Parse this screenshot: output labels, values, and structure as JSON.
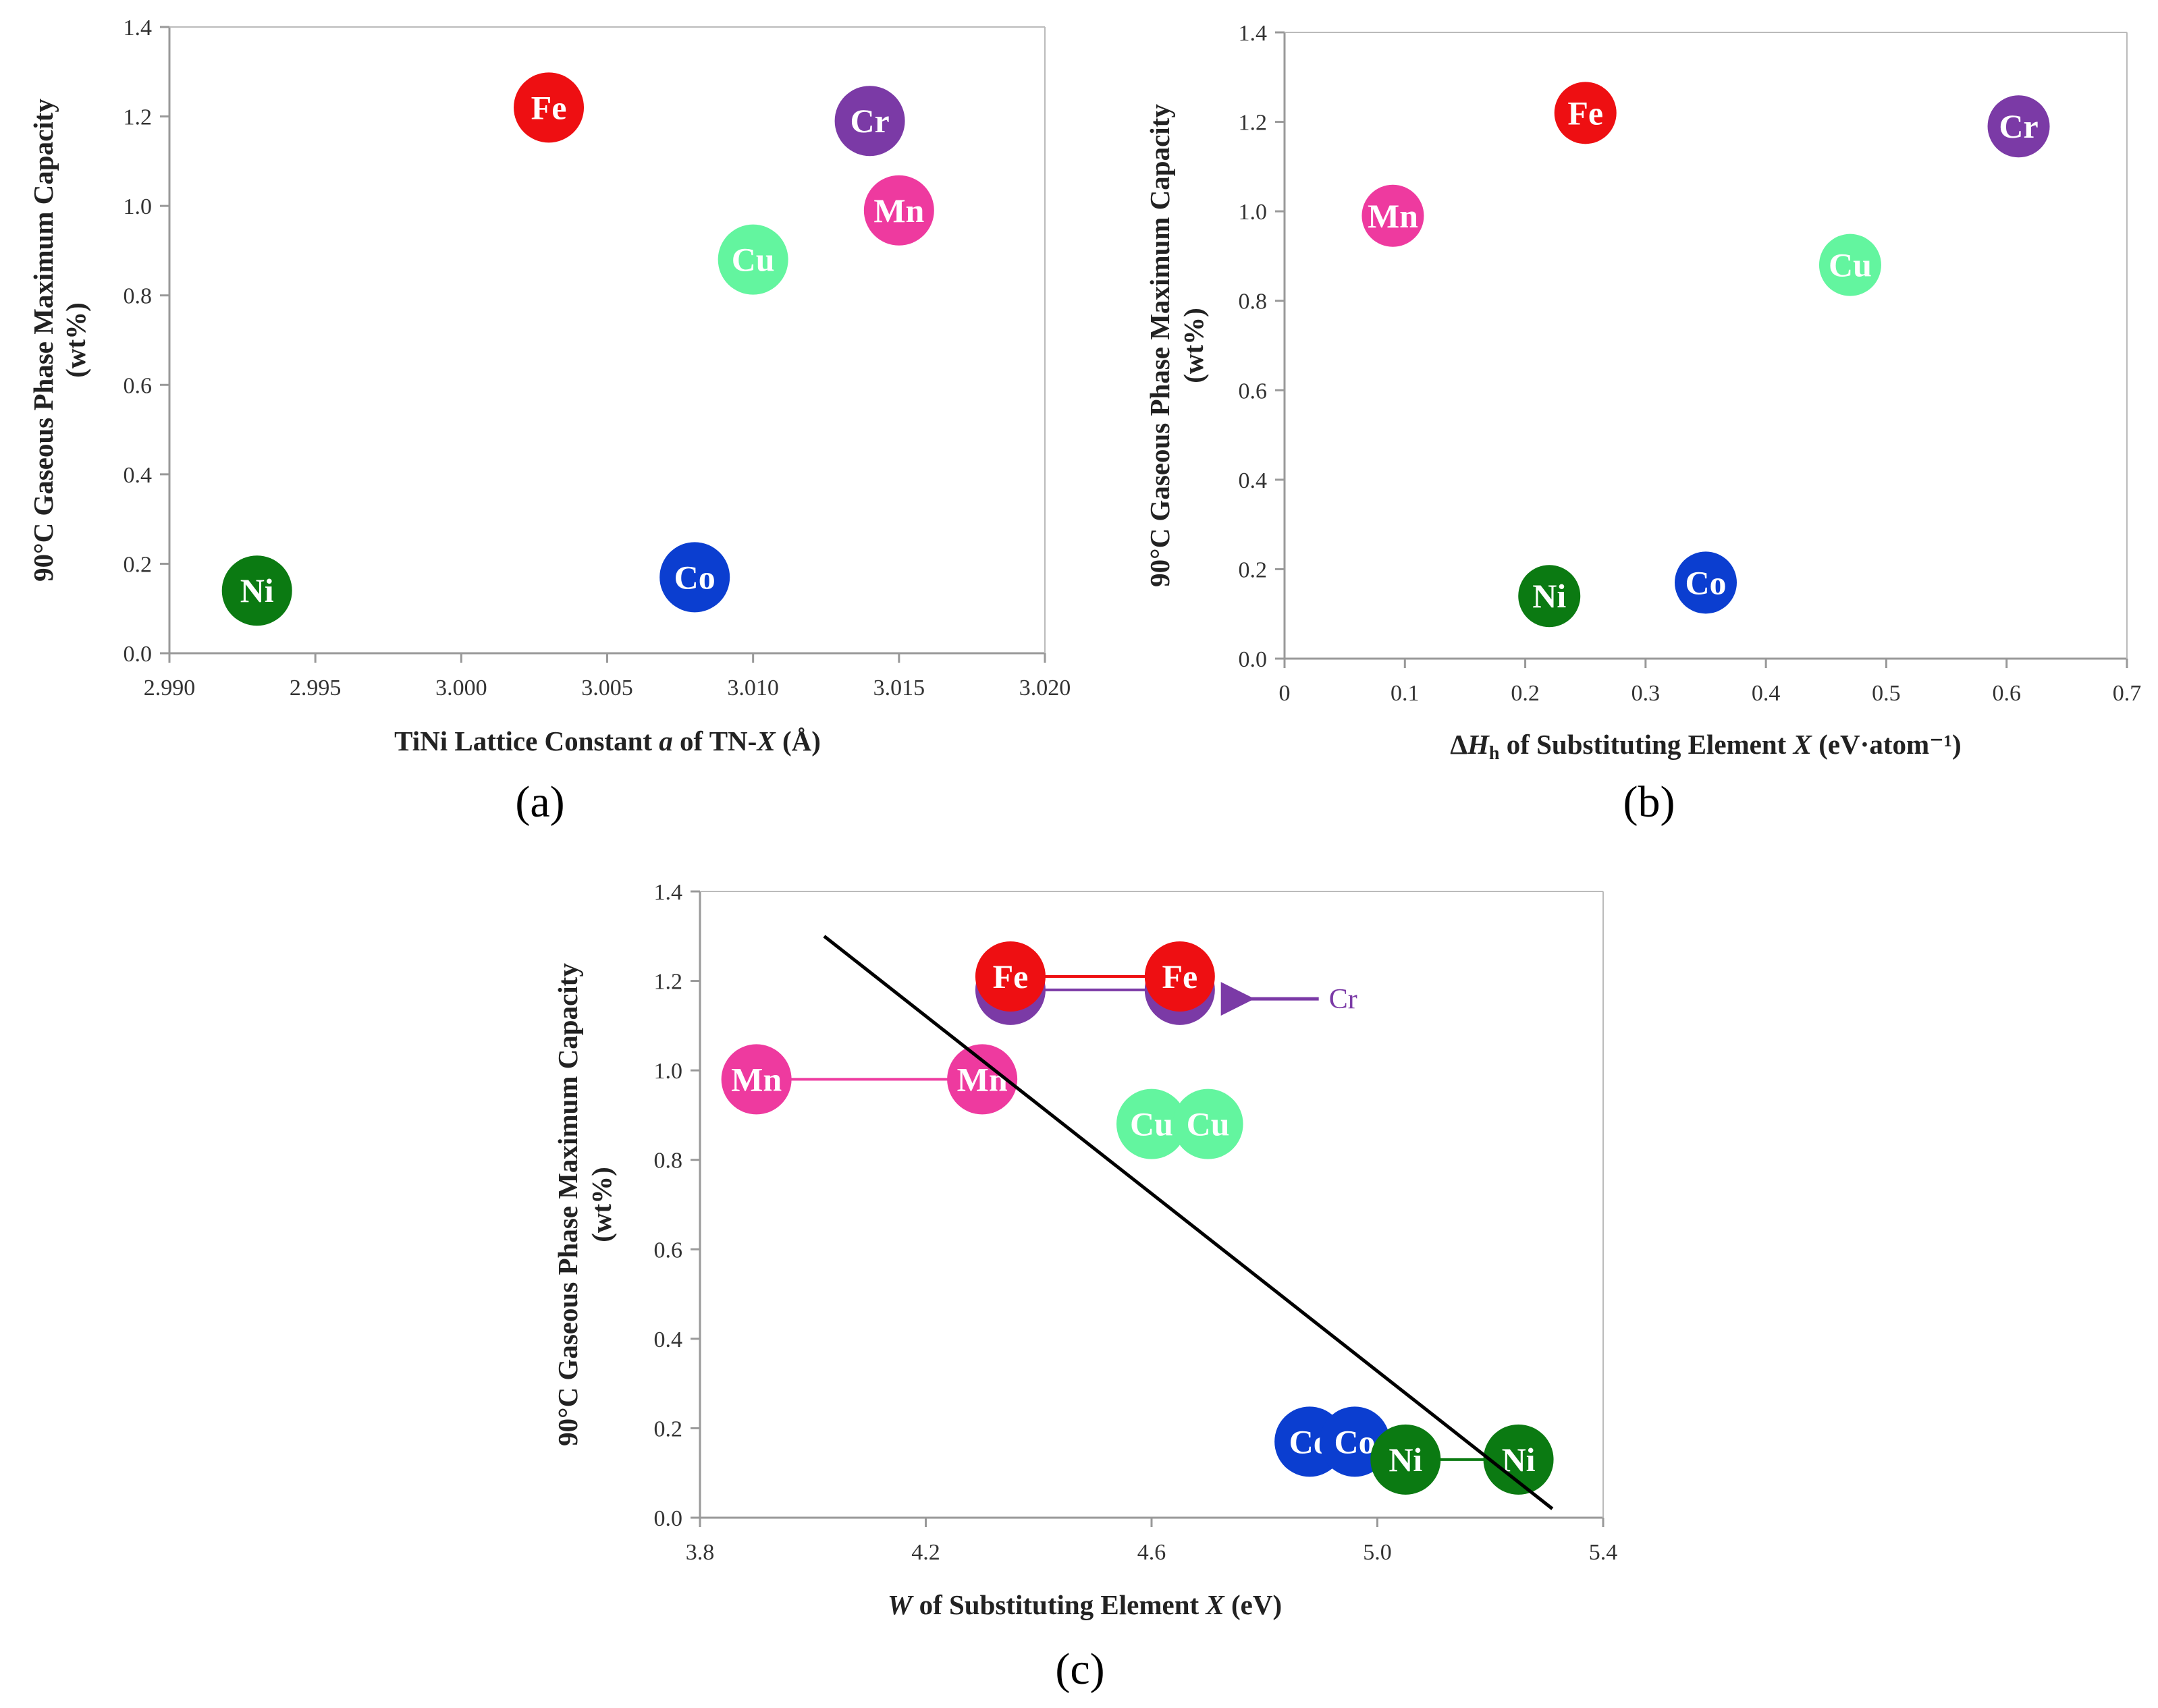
{
  "colors": {
    "Fe": "#ee0f12",
    "Cr": "#7b3aa6",
    "Mn": "#ee3a9f",
    "Cu": "#63f59f",
    "Co": "#0b3ed0",
    "Ni": "#0b7a12",
    "fit_line": "#000000",
    "axis": "#999999"
  },
  "chart_data": [
    {
      "panel": "a",
      "type": "scatter",
      "title": "",
      "xlabel": "TiNi Lattice Constant a of TN-X (Å)",
      "ylabel_line1": "90°C Gaseous Phase Maximum Capacity",
      "ylabel_line2": "(wt%)",
      "xlim": [
        2.99,
        3.02
      ],
      "ylim": [
        0.0,
        1.4
      ],
      "xticks": [
        "2.990",
        "2.995",
        "3.000",
        "3.005",
        "3.010",
        "3.015",
        "3.020"
      ],
      "yticks": [
        "0.0",
        "0.2",
        "0.4",
        "0.6",
        "0.8",
        "1.0",
        "1.2",
        "1.4"
      ],
      "grid": false,
      "points": [
        {
          "label": "Fe",
          "x": 3.003,
          "y": 1.22
        },
        {
          "label": "Cr",
          "x": 3.014,
          "y": 1.19
        },
        {
          "label": "Mn",
          "x": 3.015,
          "y": 0.99
        },
        {
          "label": "Cu",
          "x": 3.01,
          "y": 0.88
        },
        {
          "label": "Co",
          "x": 3.008,
          "y": 0.17
        },
        {
          "label": "Ni",
          "x": 2.993,
          "y": 0.14
        }
      ],
      "tag": "(a)"
    },
    {
      "panel": "b",
      "type": "scatter",
      "title": "",
      "xlabel": "ΔHh of Substituting Element X (eV·atom⁻¹)",
      "ylabel_line1": "90°C Gaseous Phase Maximum Capacity",
      "ylabel_line2": "(wt%)",
      "xlim": [
        0,
        0.7
      ],
      "ylim": [
        0.0,
        1.4
      ],
      "xticks": [
        "0",
        "0.1",
        "0.2",
        "0.3",
        "0.4",
        "0.5",
        "0.6",
        "0.7"
      ],
      "yticks": [
        "0.0",
        "0.2",
        "0.4",
        "0.6",
        "0.8",
        "1.0",
        "1.2",
        "1.4"
      ],
      "grid": false,
      "points": [
        {
          "label": "Fe",
          "x": 0.25,
          "y": 1.22
        },
        {
          "label": "Cr",
          "x": 0.61,
          "y": 1.19
        },
        {
          "label": "Mn",
          "x": 0.09,
          "y": 0.99
        },
        {
          "label": "Cu",
          "x": 0.47,
          "y": 0.88
        },
        {
          "label": "Co",
          "x": 0.35,
          "y": 0.17
        },
        {
          "label": "Ni",
          "x": 0.22,
          "y": 0.14
        }
      ],
      "tag": "(b)"
    },
    {
      "panel": "c",
      "type": "scatter",
      "title": "",
      "xlabel": "W of Substituting Element X (eV)",
      "ylabel_line1": "90°C Gaseous Phase Maximum Capacity",
      "ylabel_line2": "(wt%)",
      "xlim": [
        3.8,
        5.4
      ],
      "ylim": [
        0.0,
        1.4
      ],
      "xticks": [
        "3.8",
        "4.2",
        "4.6",
        "5.0",
        "5.4"
      ],
      "yticks": [
        "0.0",
        "0.2",
        "0.4",
        "0.6",
        "0.8",
        "1.0",
        "1.2",
        "1.4"
      ],
      "grid": false,
      "ranges": [
        {
          "element": "Cr",
          "x_min": 4.35,
          "x_max": 4.65,
          "y": 1.18
        },
        {
          "element": "Fe",
          "x_min": 4.35,
          "x_max": 4.65,
          "y": 1.21
        },
        {
          "element": "Mn",
          "x_min": 3.9,
          "x_max": 4.3,
          "y": 0.98
        },
        {
          "element": "Cu",
          "x_min": 4.6,
          "x_max": 4.7,
          "y": 0.88
        },
        {
          "element": "Co",
          "x_min": 4.88,
          "x_max": 4.96,
          "y": 0.17
        },
        {
          "element": "Ni",
          "x_min": 5.05,
          "x_max": 5.25,
          "y": 0.13
        }
      ],
      "points": [
        {
          "label": "Cr",
          "x": 4.35,
          "y": 1.18
        },
        {
          "label": "Cr",
          "x": 4.65,
          "y": 1.18
        },
        {
          "label": "Fe",
          "x": 4.35,
          "y": 1.21
        },
        {
          "label": "Fe",
          "x": 4.65,
          "y": 1.21
        },
        {
          "label": "Mn",
          "x": 3.9,
          "y": 0.98
        },
        {
          "label": "Mn",
          "x": 4.3,
          "y": 0.98
        },
        {
          "label": "Cu",
          "x": 4.6,
          "y": 0.88
        },
        {
          "label": "Cu",
          "x": 4.7,
          "y": 0.88
        },
        {
          "label": "Co",
          "x": 4.88,
          "y": 0.17
        },
        {
          "label": "Co",
          "x": 4.96,
          "y": 0.17
        },
        {
          "label": "Ni",
          "x": 5.05,
          "y": 0.13
        },
        {
          "label": "Ni",
          "x": 5.25,
          "y": 0.13
        }
      ],
      "fit_line": {
        "x1": 4.02,
        "y1": 1.3,
        "x2": 5.31,
        "y2": 0.02
      },
      "annotation": {
        "text": "Cr",
        "x": 4.95,
        "y": 1.16
      },
      "tag": "(c)"
    }
  ]
}
